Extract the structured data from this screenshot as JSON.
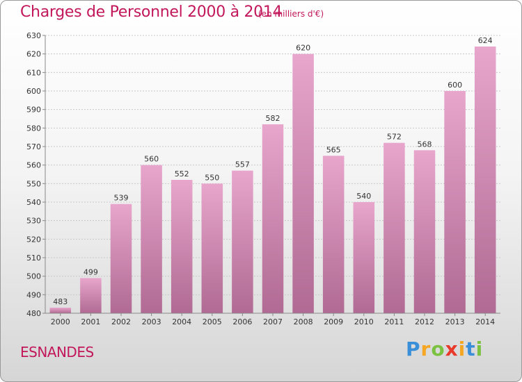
{
  "header": {
    "title": "Charges de Personnel 2000 à 2014",
    "subtitle": "(en milliers d'€)"
  },
  "footer": {
    "place": "ESNANDES",
    "logo_letters": [
      "P",
      "r",
      "o",
      "x",
      "i",
      "t",
      "i"
    ],
    "logo_colors": [
      "#3a8fd8",
      "#f5a623",
      "#7cc242",
      "#e8392b",
      "#f5a623",
      "#3a8fd8",
      "#7cc242"
    ]
  },
  "colors": {
    "bar_top": "#e8a6cc",
    "bar_bottom": "#b06a93",
    "accent": "#c2185b"
  },
  "chart_data": {
    "type": "bar",
    "title": "Charges de Personnel 2000 à 2014",
    "subtitle": "(en milliers d'€)",
    "xlabel": "",
    "ylabel": "",
    "categories": [
      "2000",
      "2001",
      "2002",
      "2003",
      "2004",
      "2005",
      "2006",
      "2007",
      "2008",
      "2009",
      "2010",
      "2011",
      "2012",
      "2013",
      "2014"
    ],
    "values": [
      483,
      499,
      539,
      560,
      552,
      550,
      557,
      582,
      620,
      565,
      540,
      572,
      568,
      600,
      624
    ],
    "ylim": [
      480,
      630
    ],
    "yticks": [
      480,
      490,
      500,
      510,
      520,
      530,
      540,
      550,
      560,
      570,
      580,
      590,
      600,
      610,
      620,
      630
    ],
    "grid": true,
    "legend": "none"
  }
}
